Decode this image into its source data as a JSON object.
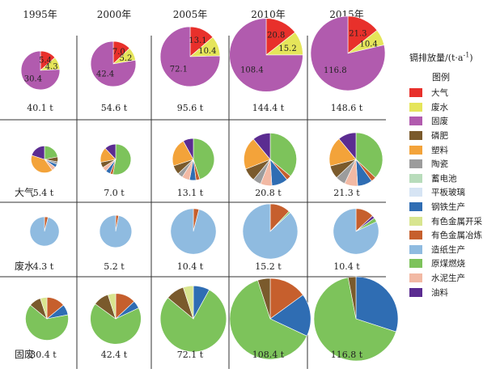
{
  "chart_data": {
    "type": "pie",
    "title": "",
    "unit_label": "镉排放量/(t·a",
    "unit_exp": "-1",
    "unit_close": ")",
    "legend_title": "图例",
    "years": [
      "1995年",
      "2000年",
      "2005年",
      "2010年",
      "2015年"
    ],
    "rows": [
      {
        "label": "",
        "totals": [
          "40.1 t",
          "54.6 t",
          "95.6 t",
          "144.4 t",
          "148.6 t"
        ],
        "values": [
          {
            "大气": 5.4,
            "废水": 4.3,
            "固废": 30.4
          },
          {
            "大气": 7.0,
            "废水": 5.2,
            "固废": 42.4
          },
          {
            "大气": 13.1,
            "废水": 10.4,
            "固废": 72.1
          },
          {
            "大气": 20.8,
            "废水": 15.2,
            "固废": 108.4
          },
          {
            "大气": 21.3,
            "废水": 10.4,
            "固废": 116.8
          }
        ],
        "slice_labels": [
          [
            "5.4",
            "4.3",
            "30.4"
          ],
          [
            "7.0",
            "5.2",
            "42.4"
          ],
          [
            "13.1",
            "10.4",
            "72.1"
          ],
          [
            "20.8",
            "15.2",
            "108.4"
          ],
          [
            "21.3",
            "10.4",
            "116.8"
          ]
        ]
      },
      {
        "label": "大气",
        "totals": [
          "5.4 t",
          "7.0 t",
          "13.1 t",
          "20.8 t",
          "21.3 t"
        ],
        "shares_percent": [
          {
            "原煤燃烧": 22,
            "磷肥": 6,
            "陶瓷": 3,
            "钢铁生产": 4,
            "水泥生产": 5,
            "塑料": 40,
            "油料": 20
          },
          {
            "原煤燃烧": 53,
            "有色金属冶炼": 3,
            "钢铁生产": 5,
            "水泥生产": 5,
            "磷肥": 6,
            "塑料": 16,
            "油料": 12
          },
          {
            "原煤燃烧": 45,
            "有色金属冶炼": 3,
            "钢铁生产": 5,
            "水泥生产": 6,
            "陶瓷": 4,
            "磷肥": 7,
            "塑料": 22,
            "油料": 8
          },
          {
            "原煤燃烧": 36,
            "有色金属冶炼": 3,
            "钢铁生产": 10,
            "水泥生产": 7,
            "陶瓷": 5,
            "磷肥": 8,
            "塑料": 20,
            "油料": 11
          },
          {
            "原煤燃烧": 37,
            "有色金属冶炼": 3,
            "钢铁生产": 9,
            "水泥生产": 8,
            "陶瓷": 6,
            "磷肥": 8,
            "塑料": 18,
            "油料": 11
          }
        ]
      },
      {
        "label": "废水",
        "totals": [
          "4.3 t",
          "5.2 t",
          "10.4 t",
          "15.2 t",
          "10.4 t"
        ],
        "shares_percent": [
          {
            "有色金属冶炼": 4,
            "造纸生产": 96
          },
          {
            "有色金属冶炼": 3,
            "造纸生产": 97
          },
          {
            "有色金属冶炼": 4,
            "造纸生产": 96
          },
          {
            "有色金属冶炼": 12,
            "原煤燃烧": 1,
            "造纸生产": 87
          },
          {
            "有色金属冶炼": 13,
            "油料": 2,
            "原煤燃烧": 3,
            "造纸生产": 82
          }
        ]
      },
      {
        "label": "固废",
        "totals": [
          "30.4 t",
          "42.4 t",
          "72.1 t",
          "108.4 t",
          "116.8 t"
        ],
        "shares_percent": [
          {
            "有色金属冶炼": 14,
            "钢铁生产": 8,
            "原煤燃烧": 64,
            "磷肥": 9,
            "有色金属开采": 5
          },
          {
            "有色金属冶炼": 13,
            "钢铁生产": 5,
            "原煤燃烧": 67,
            "磷肥": 10,
            "有色金属开采": 5
          },
          {
            "钢铁生产": 8,
            "原煤燃烧": 78,
            "磷肥": 9,
            "有色金属开采": 5
          },
          {
            "有色金属冶炼": 15,
            "钢铁生产": 17,
            "原煤燃烧": 63,
            "磷肥": 5
          },
          {
            "钢铁生产": 30,
            "原煤燃烧": 67,
            "磷肥": 3
          }
        ]
      }
    ]
  },
  "legend": [
    {
      "label": "大气",
      "color": "#e8302b"
    },
    {
      "label": "废水",
      "color": "#e5e55a"
    },
    {
      "label": "固废",
      "color": "#b15bae"
    },
    {
      "label": "磷肥",
      "color": "#7a5a2c"
    },
    {
      "label": "塑料",
      "color": "#f3a33a"
    },
    {
      "label": "陶瓷",
      "color": "#9c9c9c"
    },
    {
      "label": "蓄电池",
      "color": "#b8dcbb"
    },
    {
      "label": "平板玻璃",
      "color": "#d6e4f4"
    },
    {
      "label": "钢铁生产",
      "color": "#2f6db3"
    },
    {
      "label": "有色金属开采",
      "color": "#d8e58f"
    },
    {
      "label": "有色金属冶炼",
      "color": "#c65f2d"
    },
    {
      "label": "造纸生产",
      "color": "#8fbbe0"
    },
    {
      "label": "原煤燃烧",
      "color": "#7dc35b"
    },
    {
      "label": "水泥生产",
      "color": "#f2b9a4"
    },
    {
      "label": "油料",
      "color": "#5b2c91"
    }
  ]
}
